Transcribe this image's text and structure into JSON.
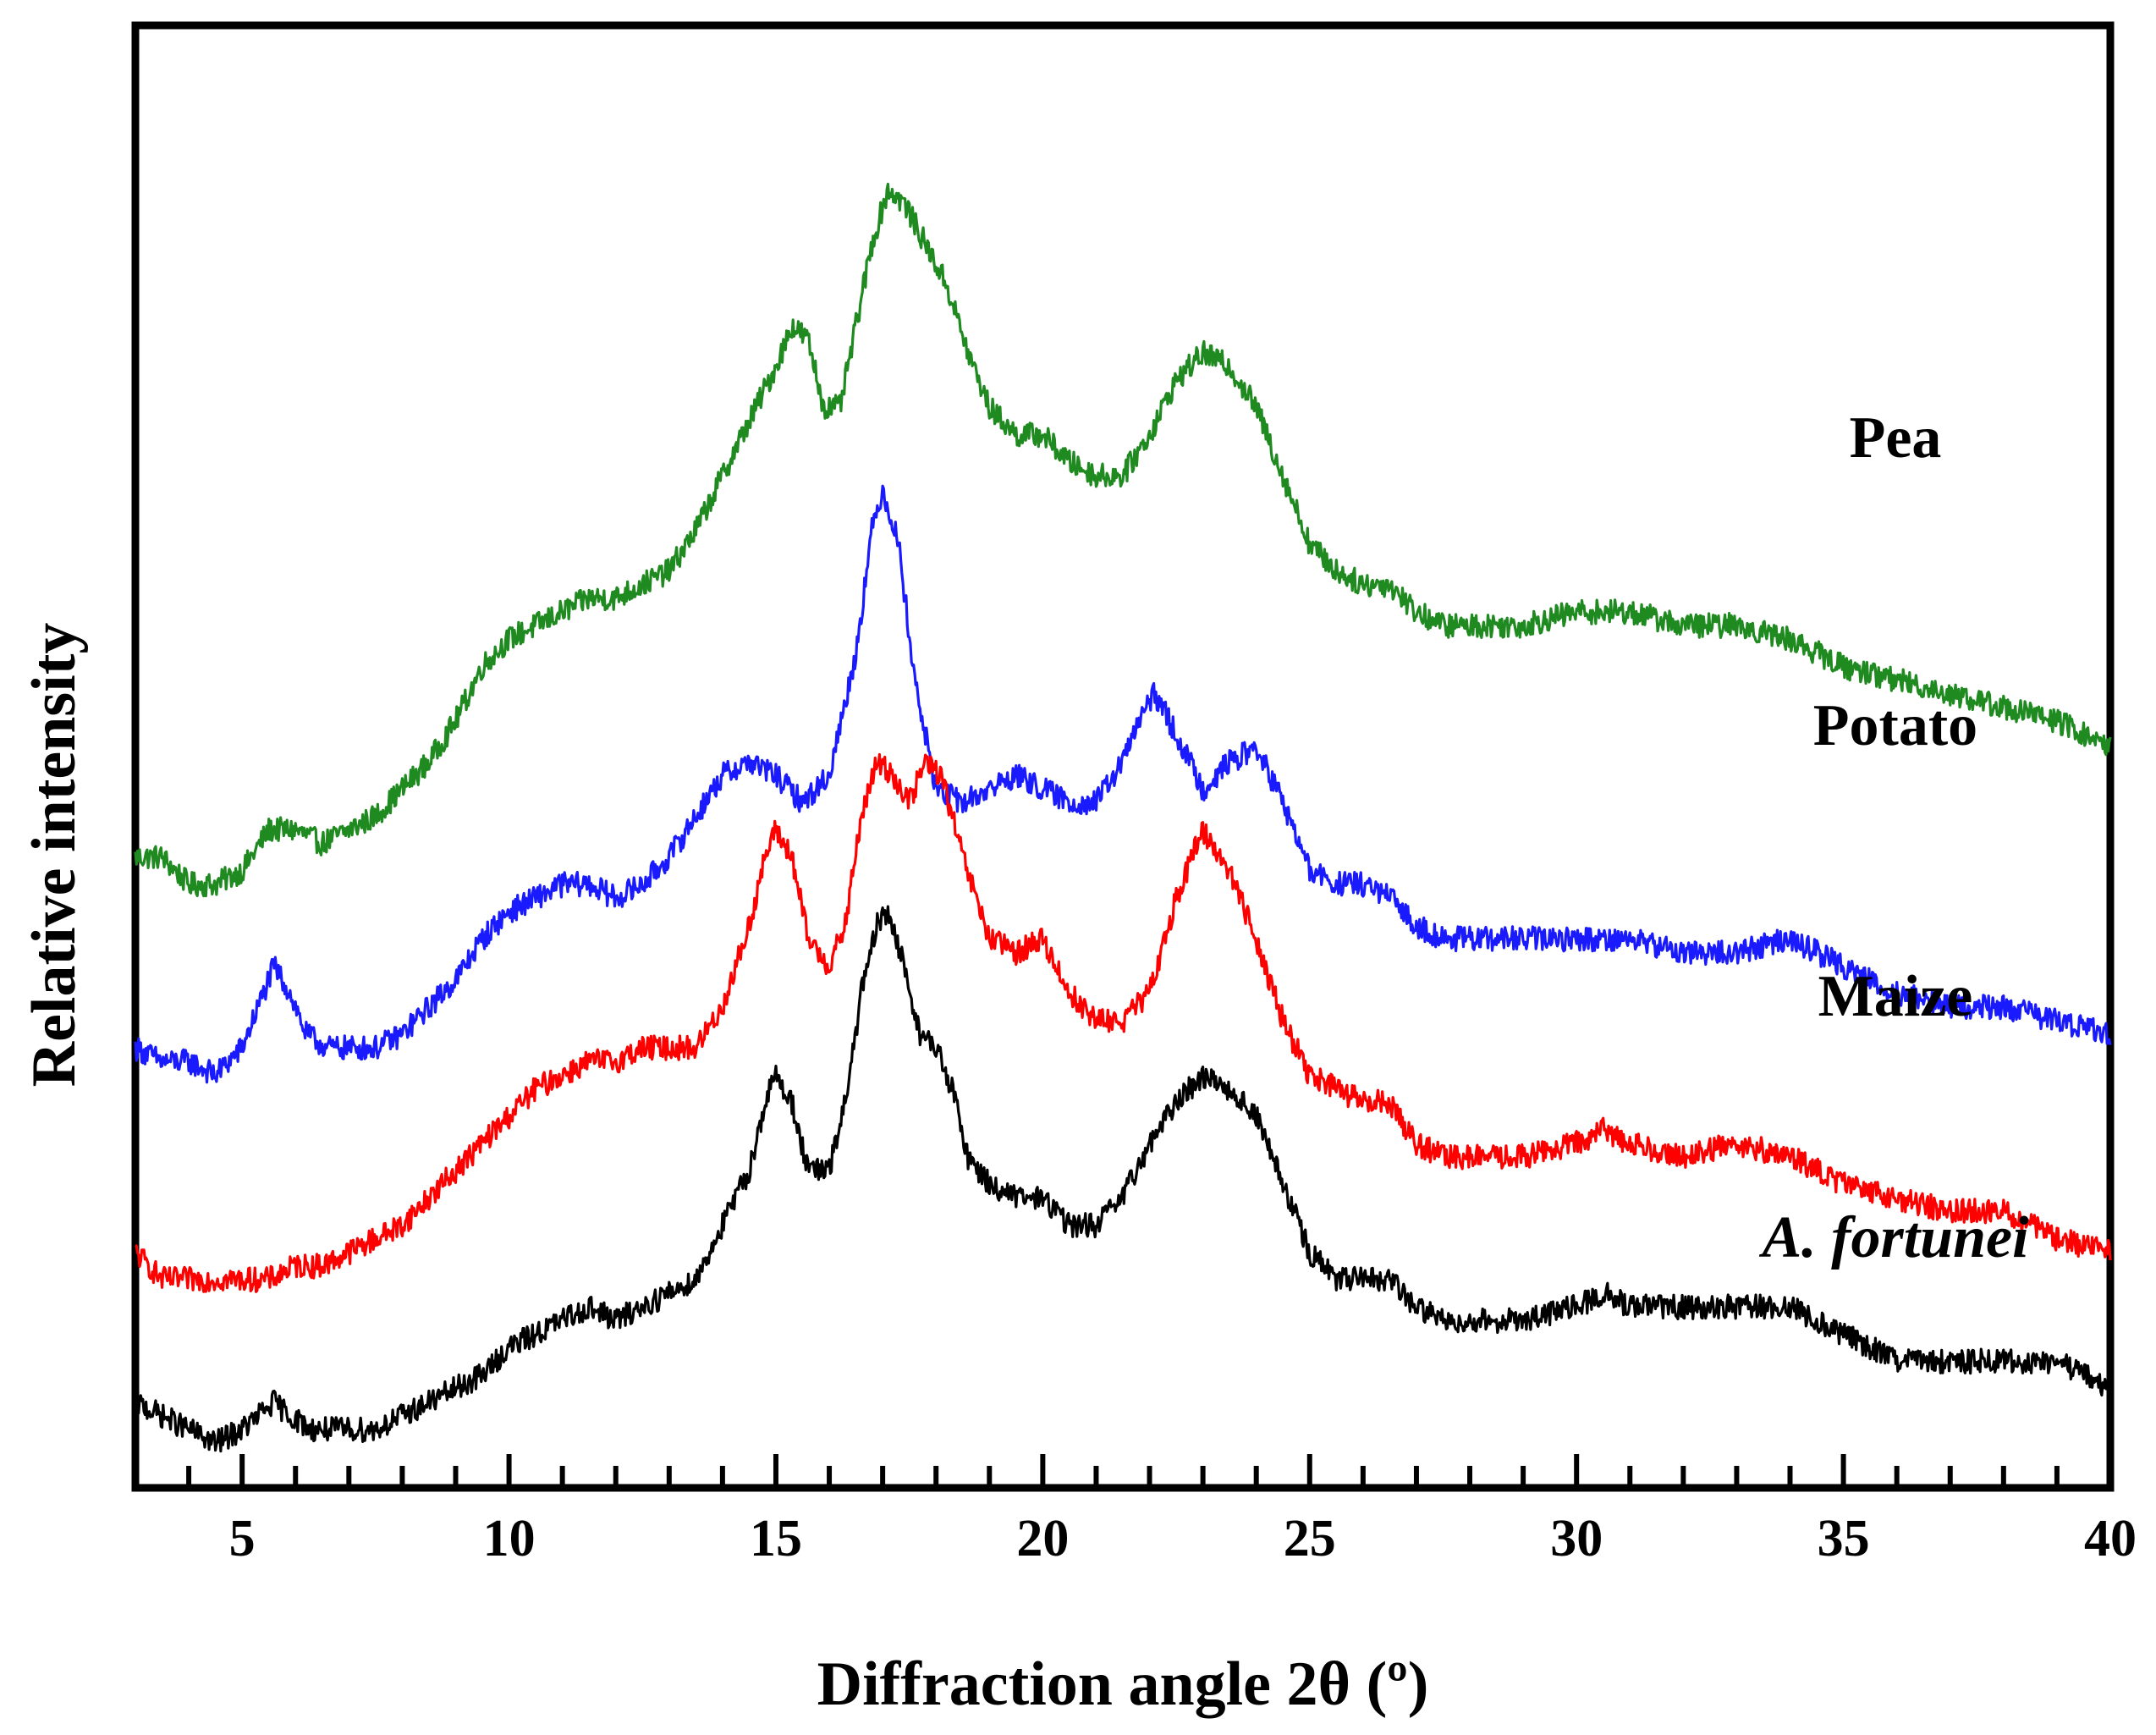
{
  "chart_data": {
    "type": "line",
    "title": "",
    "xlabel": "Diffraction angle 2θ (º)",
    "ylabel": "Relative intensity",
    "xlim": [
      3,
      40
    ],
    "x_major_ticks": [
      5,
      10,
      15,
      20,
      25,
      30,
      35,
      40
    ],
    "x_minor_step": 1,
    "y_ticks": [],
    "grid": false,
    "legend": "none",
    "series_order_top_to_bottom": [
      "Pea",
      "Potato",
      "Maize",
      "A. fortunei"
    ],
    "series": [
      {
        "name": "Pea",
        "label": "Pea",
        "italic": false,
        "color": "#1f8a1f",
        "points": [
          [
            3,
            0.43
          ],
          [
            3.5,
            0.43
          ],
          [
            4,
            0.41
          ],
          [
            4.5,
            0.41
          ],
          [
            5,
            0.42
          ],
          [
            5.5,
            0.45
          ],
          [
            6,
            0.45
          ],
          [
            6.5,
            0.44
          ],
          [
            7,
            0.45
          ],
          [
            7.5,
            0.46
          ],
          [
            8,
            0.48
          ],
          [
            8.5,
            0.5
          ],
          [
            9,
            0.53
          ],
          [
            9.5,
            0.57
          ],
          [
            10,
            0.59
          ],
          [
            10.5,
            0.6
          ],
          [
            11,
            0.61
          ],
          [
            11.5,
            0.62
          ],
          [
            12,
            0.62
          ],
          [
            12.5,
            0.63
          ],
          [
            13,
            0.64
          ],
          [
            13.5,
            0.67
          ],
          [
            14,
            0.71
          ],
          [
            14.5,
            0.75
          ],
          [
            15,
            0.79
          ],
          [
            15.3,
            0.82
          ],
          [
            15.6,
            0.81
          ],
          [
            15.9,
            0.76
          ],
          [
            16.2,
            0.76
          ],
          [
            16.5,
            0.82
          ],
          [
            16.8,
            0.88
          ],
          [
            17.1,
            0.92
          ],
          [
            17.4,
            0.91
          ],
          [
            17.8,
            0.88
          ],
          [
            18.2,
            0.85
          ],
          [
            18.6,
            0.8
          ],
          [
            19,
            0.76
          ],
          [
            19.5,
            0.74
          ],
          [
            20,
            0.74
          ],
          [
            20.5,
            0.72
          ],
          [
            21,
            0.71
          ],
          [
            21.5,
            0.71
          ],
          [
            22,
            0.74
          ],
          [
            22.5,
            0.78
          ],
          [
            23,
            0.8
          ],
          [
            23.5,
            0.79
          ],
          [
            24,
            0.76
          ],
          [
            24.5,
            0.71
          ],
          [
            25,
            0.66
          ],
          [
            25.5,
            0.64
          ],
          [
            26,
            0.63
          ],
          [
            26.5,
            0.63
          ],
          [
            27,
            0.61
          ],
          [
            27.5,
            0.6
          ],
          [
            28,
            0.6
          ],
          [
            29,
            0.6
          ],
          [
            30,
            0.61
          ],
          [
            31,
            0.61
          ],
          [
            32,
            0.6
          ],
          [
            33,
            0.6
          ],
          [
            34,
            0.59
          ],
          [
            35,
            0.57
          ],
          [
            36,
            0.56
          ],
          [
            37,
            0.55
          ],
          [
            38,
            0.54
          ],
          [
            39,
            0.53
          ],
          [
            40,
            0.51
          ]
        ]
      },
      {
        "name": "Potato",
        "label": "Potato",
        "italic": false,
        "color": "#1a1aff",
        "points": [
          [
            3,
            0.29
          ],
          [
            3.5,
            0.28
          ],
          [
            4,
            0.28
          ],
          [
            4.5,
            0.27
          ],
          [
            5,
            0.29
          ],
          [
            5.3,
            0.32
          ],
          [
            5.6,
            0.35
          ],
          [
            5.9,
            0.33
          ],
          [
            6.2,
            0.3
          ],
          [
            6.6,
            0.29
          ],
          [
            7,
            0.29
          ],
          [
            7.5,
            0.29
          ],
          [
            8,
            0.3
          ],
          [
            8.5,
            0.32
          ],
          [
            9,
            0.34
          ],
          [
            9.5,
            0.37
          ],
          [
            10,
            0.39
          ],
          [
            10.5,
            0.4
          ],
          [
            11,
            0.41
          ],
          [
            11.5,
            0.41
          ],
          [
            12,
            0.4
          ],
          [
            12.5,
            0.41
          ],
          [
            13,
            0.43
          ],
          [
            13.5,
            0.46
          ],
          [
            14,
            0.49
          ],
          [
            14.5,
            0.5
          ],
          [
            15,
            0.49
          ],
          [
            15.5,
            0.47
          ],
          [
            16,
            0.49
          ],
          [
            16.5,
            0.58
          ],
          [
            16.8,
            0.67
          ],
          [
            17,
            0.7
          ],
          [
            17.3,
            0.66
          ],
          [
            17.6,
            0.56
          ],
          [
            18,
            0.48
          ],
          [
            18.5,
            0.47
          ],
          [
            19,
            0.48
          ],
          [
            19.5,
            0.49
          ],
          [
            20,
            0.48
          ],
          [
            20.5,
            0.47
          ],
          [
            21,
            0.47
          ],
          [
            21.5,
            0.5
          ],
          [
            21.8,
            0.53
          ],
          [
            22.1,
            0.55
          ],
          [
            22.5,
            0.52
          ],
          [
            23,
            0.48
          ],
          [
            23.5,
            0.5
          ],
          [
            24,
            0.51
          ],
          [
            24.5,
            0.47
          ],
          [
            25,
            0.42
          ],
          [
            25.5,
            0.41
          ],
          [
            26,
            0.41
          ],
          [
            26.5,
            0.4
          ],
          [
            27,
            0.38
          ],
          [
            27.5,
            0.37
          ],
          [
            28,
            0.37
          ],
          [
            29,
            0.37
          ],
          [
            30,
            0.37
          ],
          [
            31,
            0.37
          ],
          [
            32,
            0.36
          ],
          [
            33,
            0.36
          ],
          [
            34,
            0.37
          ],
          [
            35,
            0.35
          ],
          [
            36,
            0.33
          ],
          [
            37,
            0.32
          ],
          [
            38,
            0.32
          ],
          [
            39,
            0.31
          ],
          [
            40,
            0.3
          ]
        ]
      },
      {
        "name": "Maize",
        "label": "Maize",
        "italic": false,
        "color": "#ff0000",
        "points": [
          [
            3,
            0.14
          ],
          [
            3.5,
            0.12
          ],
          [
            4,
            0.12
          ],
          [
            4.5,
            0.12
          ],
          [
            5,
            0.12
          ],
          [
            5.5,
            0.12
          ],
          [
            6,
            0.13
          ],
          [
            6.5,
            0.13
          ],
          [
            7,
            0.14
          ],
          [
            7.5,
            0.15
          ],
          [
            8,
            0.16
          ],
          [
            8.5,
            0.18
          ],
          [
            9,
            0.2
          ],
          [
            9.5,
            0.22
          ],
          [
            10,
            0.24
          ],
          [
            10.5,
            0.26
          ],
          [
            11,
            0.27
          ],
          [
            11.5,
            0.28
          ],
          [
            12,
            0.28
          ],
          [
            12.5,
            0.29
          ],
          [
            13,
            0.29
          ],
          [
            13.5,
            0.29
          ],
          [
            14,
            0.32
          ],
          [
            14.5,
            0.38
          ],
          [
            14.8,
            0.43
          ],
          [
            15,
            0.45
          ],
          [
            15.3,
            0.43
          ],
          [
            15.6,
            0.37
          ],
          [
            16,
            0.35
          ],
          [
            16.3,
            0.38
          ],
          [
            16.6,
            0.46
          ],
          [
            16.9,
            0.5
          ],
          [
            17.2,
            0.49
          ],
          [
            17.5,
            0.47
          ],
          [
            17.8,
            0.5
          ],
          [
            18.1,
            0.49
          ],
          [
            18.5,
            0.43
          ],
          [
            19,
            0.37
          ],
          [
            19.5,
            0.36
          ],
          [
            20,
            0.37
          ],
          [
            20.5,
            0.33
          ],
          [
            21,
            0.31
          ],
          [
            21.5,
            0.31
          ],
          [
            22,
            0.33
          ],
          [
            22.5,
            0.4
          ],
          [
            23,
            0.45
          ],
          [
            23.5,
            0.42
          ],
          [
            24,
            0.37
          ],
          [
            24.5,
            0.31
          ],
          [
            25,
            0.27
          ],
          [
            25.5,
            0.26
          ],
          [
            26,
            0.25
          ],
          [
            26.5,
            0.25
          ],
          [
            27,
            0.22
          ],
          [
            27.5,
            0.21
          ],
          [
            28,
            0.21
          ],
          [
            29,
            0.21
          ],
          [
            30,
            0.22
          ],
          [
            30.5,
            0.23
          ],
          [
            31,
            0.22
          ],
          [
            32,
            0.21
          ],
          [
            33,
            0.22
          ],
          [
            34,
            0.21
          ],
          [
            35,
            0.19
          ],
          [
            36,
            0.18
          ],
          [
            37,
            0.17
          ],
          [
            38,
            0.17
          ],
          [
            39,
            0.15
          ],
          [
            40,
            0.14
          ]
        ]
      },
      {
        "name": "A. fortunei",
        "label": "A. fortunei",
        "italic": true,
        "color": "#000000",
        "points": [
          [
            3,
            0.03
          ],
          [
            3.5,
            0.02
          ],
          [
            4,
            0.01
          ],
          [
            4.5,
            0.0
          ],
          [
            5,
            0.01
          ],
          [
            5.3,
            0.02
          ],
          [
            5.6,
            0.03
          ],
          [
            5.9,
            0.02
          ],
          [
            6.3,
            0.01
          ],
          [
            7,
            0.01
          ],
          [
            7.5,
            0.01
          ],
          [
            8,
            0.02
          ],
          [
            8.5,
            0.03
          ],
          [
            9,
            0.04
          ],
          [
            9.5,
            0.05
          ],
          [
            10,
            0.07
          ],
          [
            10.5,
            0.08
          ],
          [
            11,
            0.09
          ],
          [
            11.5,
            0.1
          ],
          [
            12,
            0.09
          ],
          [
            12.5,
            0.1
          ],
          [
            13,
            0.11
          ],
          [
            13.5,
            0.12
          ],
          [
            14,
            0.16
          ],
          [
            14.5,
            0.2
          ],
          [
            14.8,
            0.25
          ],
          [
            15,
            0.27
          ],
          [
            15.3,
            0.25
          ],
          [
            15.6,
            0.2
          ],
          [
            16,
            0.2
          ],
          [
            16.3,
            0.25
          ],
          [
            16.6,
            0.33
          ],
          [
            16.9,
            0.38
          ],
          [
            17.1,
            0.39
          ],
          [
            17.4,
            0.35
          ],
          [
            17.7,
            0.3
          ],
          [
            18,
            0.29
          ],
          [
            18.3,
            0.26
          ],
          [
            18.6,
            0.21
          ],
          [
            19,
            0.19
          ],
          [
            19.5,
            0.18
          ],
          [
            20,
            0.18
          ],
          [
            20.5,
            0.16
          ],
          [
            21,
            0.16
          ],
          [
            21.5,
            0.18
          ],
          [
            22,
            0.22
          ],
          [
            22.5,
            0.25
          ],
          [
            23,
            0.27
          ],
          [
            23.5,
            0.26
          ],
          [
            24,
            0.24
          ],
          [
            24.5,
            0.19
          ],
          [
            25,
            0.14
          ],
          [
            25.5,
            0.12
          ],
          [
            26,
            0.12
          ],
          [
            26.5,
            0.12
          ],
          [
            27,
            0.1
          ],
          [
            27.5,
            0.09
          ],
          [
            28,
            0.09
          ],
          [
            29,
            0.09
          ],
          [
            30,
            0.1
          ],
          [
            30.5,
            0.11
          ],
          [
            31,
            0.1
          ],
          [
            32,
            0.1
          ],
          [
            33,
            0.1
          ],
          [
            34,
            0.1
          ],
          [
            35,
            0.08
          ],
          [
            36,
            0.06
          ],
          [
            37,
            0.06
          ],
          [
            38,
            0.06
          ],
          [
            39,
            0.06
          ],
          [
            40,
            0.04
          ]
        ]
      }
    ]
  }
}
